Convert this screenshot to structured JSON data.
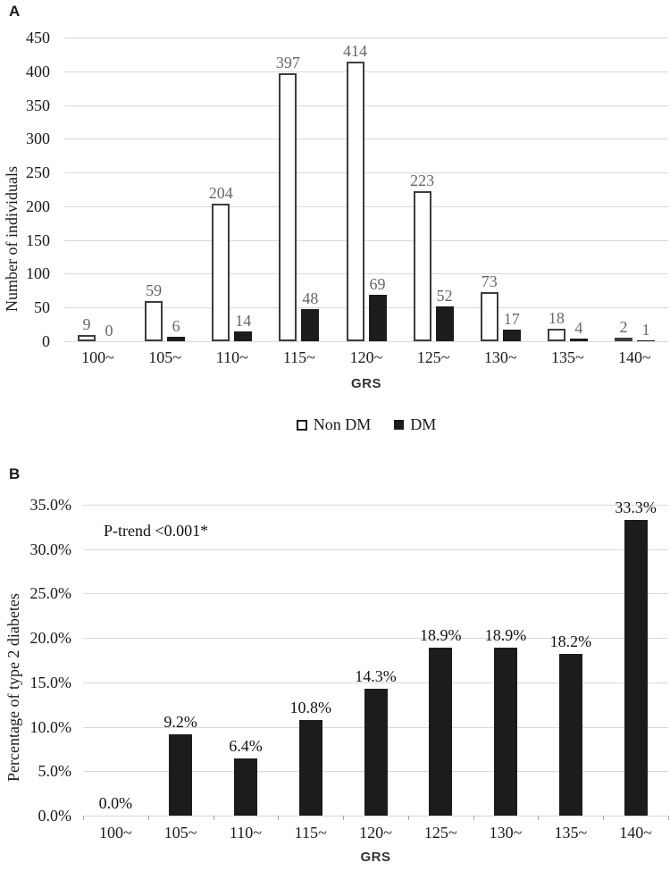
{
  "colors": {
    "bar_filled": "#1c1c1c",
    "bar_outline_border": "#3d3d3d",
    "bar_outline_fill": "#ffffff",
    "gridline": "#d9d9d9",
    "value_label_gray": "#666666",
    "text_black": "#1a1a1a"
  },
  "chart_data": [
    {
      "type": "bar",
      "panel": "A",
      "ylabel": "Number of individuals",
      "xlabel": "GRS",
      "categories": [
        "100~",
        "105~",
        "110~",
        "115~",
        "120~",
        "125~",
        "130~",
        "135~",
        "140~"
      ],
      "series": [
        {
          "name": "Non DM",
          "style": "outline",
          "values": [
            9,
            59,
            204,
            397,
            414,
            223,
            73,
            18,
            2
          ]
        },
        {
          "name": "DM",
          "style": "filled",
          "values": [
            0,
            6,
            14,
            48,
            69,
            52,
            17,
            4,
            1
          ]
        }
      ],
      "ylim": [
        0,
        450
      ],
      "yticks": [
        "0",
        "50",
        "100",
        "150",
        "200",
        "250",
        "300",
        "350",
        "400",
        "450"
      ],
      "grid": true,
      "legend_position": "bottom"
    },
    {
      "type": "bar",
      "panel": "B",
      "ylabel": "Percentage of type 2 diabetes",
      "xlabel": "GRS",
      "annotation": "P-trend <0.001*",
      "categories": [
        "100~",
        "105~",
        "110~",
        "115~",
        "120~",
        "125~",
        "130~",
        "135~",
        "140~"
      ],
      "values": [
        0.0,
        9.2,
        6.4,
        10.8,
        14.3,
        18.9,
        18.9,
        18.2,
        33.3
      ],
      "value_labels": [
        "0.0%",
        "9.2%",
        "6.4%",
        "10.8%",
        "14.3%",
        "18.9%",
        "18.9%",
        "18.2%",
        "33.3%"
      ],
      "ylim": [
        0,
        35
      ],
      "yticks": [
        "0.0%",
        "5.0%",
        "10.0%",
        "15.0%",
        "20.0%",
        "25.0%",
        "30.0%",
        "35.0%"
      ],
      "grid": true
    }
  ]
}
